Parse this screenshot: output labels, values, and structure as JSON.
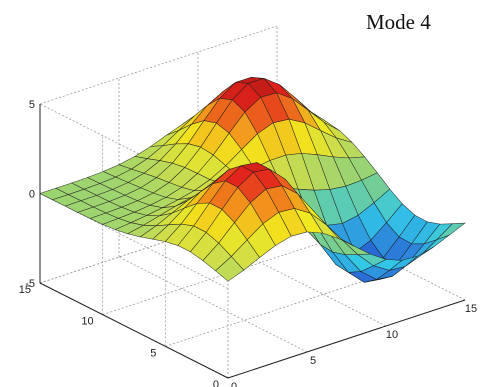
{
  "title": "Mode 4",
  "chart_data": {
    "type": "surface",
    "title": "Mode 4",
    "xlabel": "",
    "ylabel": "",
    "zlabel": "",
    "xlim": [
      0,
      15
    ],
    "ylim": [
      0,
      15
    ],
    "zlim": [
      -5,
      5
    ],
    "x_ticks": [
      0,
      5,
      10,
      15
    ],
    "y_ticks": [
      0,
      5,
      10,
      15
    ],
    "z_ticks": [
      -5,
      0,
      5
    ],
    "grid": true,
    "grid_size": [
      16,
      16
    ],
    "colormap": "jet",
    "peaks": [
      {
        "x": 10.5,
        "y": 11.0,
        "z": 4.8
      },
      {
        "x": 4.5,
        "y": 3.5,
        "z": 4.5
      },
      {
        "x": 11.5,
        "y": 3.5,
        "z": -4.3
      }
    ],
    "colors": {
      "dark_blue": "#1a2fa0",
      "blue": "#2a6cd6",
      "cyan": "#33c8e8",
      "green": "#7fcf86",
      "yellow_green": "#c8dc50",
      "yellow": "#f2e81e",
      "orange": "#f2931c",
      "red": "#e3241c",
      "dark_red": "#a01414"
    }
  }
}
